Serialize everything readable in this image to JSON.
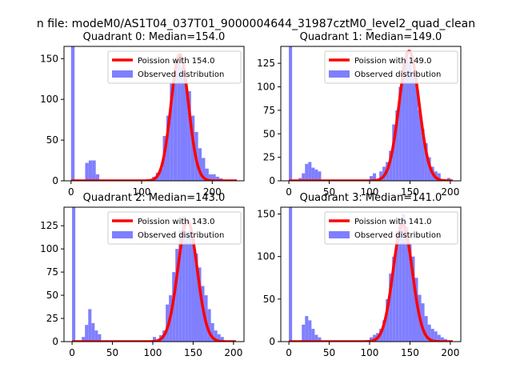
{
  "figure": {
    "suptitle": "n file: modeM0/AS1T04_037T01_9000004644_31987cztM0_level2_quad_clean"
  },
  "colors": {
    "hist": "#7f7fff",
    "poisson": "#ff0000",
    "background": "#ffffff"
  },
  "chart_data": [
    {
      "type": "bar",
      "title": "Quadrant 0: Median=154.0",
      "xlim": [
        -10,
        245
      ],
      "ylim": [
        0,
        165
      ],
      "xticks": [
        0,
        100,
        200
      ],
      "yticks": [
        0,
        50,
        100,
        150
      ],
      "legend": {
        "position": "top-right",
        "line_label": "Poission with 154.0",
        "hist_label": "Observed distribution"
      },
      "poisson_mean": 154.0,
      "poisson_peak": 155,
      "bin_width": 5,
      "bins": [
        {
          "x": 0,
          "y": 165
        },
        {
          "x": 20,
          "y": 22
        },
        {
          "x": 25,
          "y": 25
        },
        {
          "x": 30,
          "y": 25
        },
        {
          "x": 35,
          "y": 8
        },
        {
          "x": 115,
          "y": 5
        },
        {
          "x": 120,
          "y": 10
        },
        {
          "x": 125,
          "y": 15
        },
        {
          "x": 130,
          "y": 55
        },
        {
          "x": 135,
          "y": 80
        },
        {
          "x": 140,
          "y": 120
        },
        {
          "x": 145,
          "y": 135
        },
        {
          "x": 150,
          "y": 155
        },
        {
          "x": 155,
          "y": 140
        },
        {
          "x": 160,
          "y": 130
        },
        {
          "x": 165,
          "y": 110
        },
        {
          "x": 170,
          "y": 80
        },
        {
          "x": 175,
          "y": 60
        },
        {
          "x": 180,
          "y": 40
        },
        {
          "x": 185,
          "y": 28
        },
        {
          "x": 190,
          "y": 15
        },
        {
          "x": 195,
          "y": 8
        },
        {
          "x": 200,
          "y": 8
        },
        {
          "x": 205,
          "y": 5
        },
        {
          "x": 210,
          "y": 3
        }
      ]
    },
    {
      "type": "bar",
      "title": "Quadrant 1: Median=149.0",
      "xlim": [
        -10,
        213
      ],
      "ylim": [
        0,
        143
      ],
      "xticks": [
        0,
        50,
        100,
        150,
        200
      ],
      "yticks": [
        0,
        25,
        50,
        75,
        100,
        125
      ],
      "legend": {
        "position": "top-right",
        "line_label": "Poission with 149.0",
        "hist_label": "Observed distribution"
      },
      "poisson_mean": 149.0,
      "poisson_peak": 138,
      "bin_width": 4,
      "bins": [
        {
          "x": 0,
          "y": 143
        },
        {
          "x": 12,
          "y": 3
        },
        {
          "x": 16,
          "y": 8
        },
        {
          "x": 20,
          "y": 18
        },
        {
          "x": 24,
          "y": 20
        },
        {
          "x": 28,
          "y": 14
        },
        {
          "x": 32,
          "y": 12
        },
        {
          "x": 36,
          "y": 10
        },
        {
          "x": 100,
          "y": 5
        },
        {
          "x": 104,
          "y": 8
        },
        {
          "x": 112,
          "y": 10
        },
        {
          "x": 116,
          "y": 15
        },
        {
          "x": 120,
          "y": 20
        },
        {
          "x": 124,
          "y": 32
        },
        {
          "x": 128,
          "y": 60
        },
        {
          "x": 132,
          "y": 75
        },
        {
          "x": 136,
          "y": 100
        },
        {
          "x": 140,
          "y": 130
        },
        {
          "x": 144,
          "y": 138
        },
        {
          "x": 148,
          "y": 125
        },
        {
          "x": 152,
          "y": 115
        },
        {
          "x": 156,
          "y": 105
        },
        {
          "x": 160,
          "y": 75
        },
        {
          "x": 164,
          "y": 55
        },
        {
          "x": 168,
          "y": 40
        },
        {
          "x": 172,
          "y": 25
        },
        {
          "x": 176,
          "y": 15
        },
        {
          "x": 180,
          "y": 10
        },
        {
          "x": 184,
          "y": 8
        },
        {
          "x": 196,
          "y": 3
        }
      ]
    },
    {
      "type": "bar",
      "title": "Quadrant 2: Median=143.0",
      "xlim": [
        -10,
        213
      ],
      "ylim": [
        0,
        145
      ],
      "xticks": [
        0,
        50,
        100,
        150,
        200
      ],
      "yticks": [
        0,
        25,
        50,
        75,
        100,
        125
      ],
      "legend": {
        "position": "top-right",
        "line_label": "Poission with 143.0",
        "hist_label": "Observed distribution"
      },
      "poisson_mean": 143.0,
      "poisson_peak": 130,
      "bin_width": 4,
      "bins": [
        {
          "x": 0,
          "y": 145
        },
        {
          "x": 12,
          "y": 5
        },
        {
          "x": 16,
          "y": 18
        },
        {
          "x": 20,
          "y": 35
        },
        {
          "x": 24,
          "y": 20
        },
        {
          "x": 28,
          "y": 12
        },
        {
          "x": 32,
          "y": 8
        },
        {
          "x": 100,
          "y": 5
        },
        {
          "x": 108,
          "y": 7
        },
        {
          "x": 112,
          "y": 12
        },
        {
          "x": 116,
          "y": 40
        },
        {
          "x": 120,
          "y": 50
        },
        {
          "x": 124,
          "y": 75
        },
        {
          "x": 128,
          "y": 100
        },
        {
          "x": 132,
          "y": 120
        },
        {
          "x": 136,
          "y": 135
        },
        {
          "x": 140,
          "y": 115
        },
        {
          "x": 144,
          "y": 120
        },
        {
          "x": 148,
          "y": 110
        },
        {
          "x": 152,
          "y": 95
        },
        {
          "x": 156,
          "y": 80
        },
        {
          "x": 160,
          "y": 60
        },
        {
          "x": 164,
          "y": 50
        },
        {
          "x": 168,
          "y": 35
        },
        {
          "x": 172,
          "y": 20
        },
        {
          "x": 176,
          "y": 12
        },
        {
          "x": 180,
          "y": 8
        },
        {
          "x": 184,
          "y": 5
        }
      ]
    },
    {
      "type": "bar",
      "title": "Quadrant 3: Median=141.0",
      "xlim": [
        -10,
        213
      ],
      "ylim": [
        0,
        158
      ],
      "xticks": [
        0,
        50,
        100,
        150,
        200
      ],
      "yticks": [
        0,
        50,
        100,
        150
      ],
      "legend": {
        "position": "top-right",
        "line_label": "Poission with 141.0",
        "hist_label": "Observed distribution"
      },
      "poisson_mean": 141.0,
      "poisson_peak": 138,
      "bin_width": 4,
      "bins": [
        {
          "x": 0,
          "y": 158
        },
        {
          "x": 16,
          "y": 20
        },
        {
          "x": 20,
          "y": 30
        },
        {
          "x": 24,
          "y": 25
        },
        {
          "x": 28,
          "y": 15
        },
        {
          "x": 32,
          "y": 8
        },
        {
          "x": 36,
          "y": 5
        },
        {
          "x": 100,
          "y": 5
        },
        {
          "x": 104,
          "y": 8
        },
        {
          "x": 108,
          "y": 10
        },
        {
          "x": 112,
          "y": 15
        },
        {
          "x": 116,
          "y": 25
        },
        {
          "x": 120,
          "y": 50
        },
        {
          "x": 124,
          "y": 80
        },
        {
          "x": 128,
          "y": 100
        },
        {
          "x": 132,
          "y": 130
        },
        {
          "x": 136,
          "y": 145
        },
        {
          "x": 140,
          "y": 150
        },
        {
          "x": 144,
          "y": 135
        },
        {
          "x": 148,
          "y": 115
        },
        {
          "x": 152,
          "y": 100
        },
        {
          "x": 156,
          "y": 75
        },
        {
          "x": 160,
          "y": 55
        },
        {
          "x": 164,
          "y": 45
        },
        {
          "x": 168,
          "y": 30
        },
        {
          "x": 172,
          "y": 20
        },
        {
          "x": 176,
          "y": 15
        },
        {
          "x": 180,
          "y": 12
        },
        {
          "x": 184,
          "y": 8
        },
        {
          "x": 188,
          "y": 5
        },
        {
          "x": 192,
          "y": 3
        }
      ]
    }
  ]
}
